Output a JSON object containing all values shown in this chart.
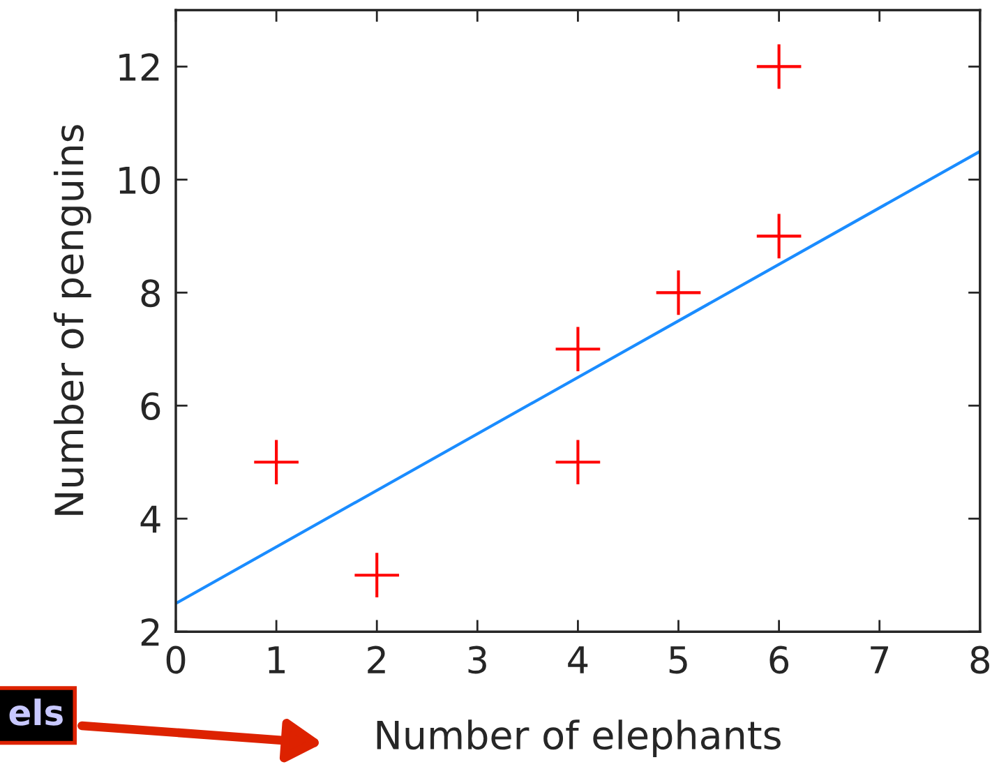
{
  "chart_data": {
    "type": "scatter",
    "xlabel": "Number of elephants",
    "ylabel": "Number of penguins",
    "series": [
      {
        "color": "#ff0000",
        "marker": "cross",
        "x": [
          1,
          2,
          4,
          4,
          5,
          6,
          6
        ],
        "values": [
          5,
          3,
          7,
          5,
          8,
          12,
          9
        ]
      },
      {
        "type": "line",
        "color": "#1a8cff",
        "marker": "none",
        "line_style": "solid",
        "x": [
          0,
          8
        ],
        "values": [
          2.5,
          10.5
        ]
      }
    ],
    "xlim": [
      0,
      8
    ],
    "ylim": [
      2,
      13
    ],
    "xticks": [
      0,
      1,
      2,
      3,
      4,
      5,
      6,
      7,
      8
    ],
    "yticks": [
      2,
      4,
      6,
      8,
      10,
      12
    ],
    "grid": false,
    "legend": false,
    "annotations": [
      "els"
    ]
  }
}
